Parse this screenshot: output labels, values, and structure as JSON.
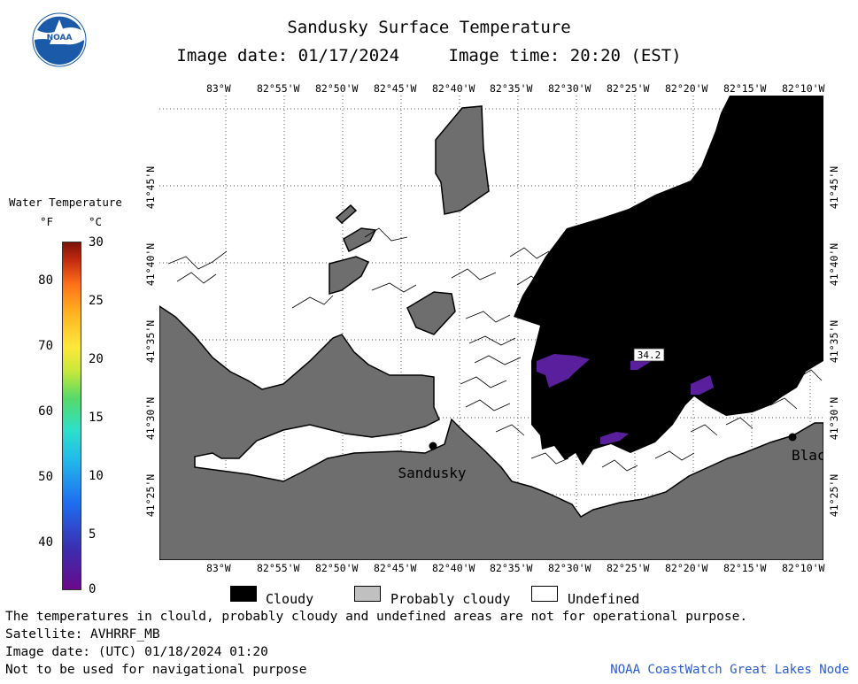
{
  "header": {
    "title": "Sandusky Surface Temperature",
    "image_date": "Image date: 01/17/2024",
    "image_time": "Image time: 20:20 (EST)"
  },
  "logo": {
    "text": "NOAA",
    "icon": "noaa-logo"
  },
  "legend": {
    "title": "Water Temperature",
    "unit_f": "°F",
    "unit_c": "°C",
    "f_ticks": [
      "80",
      "70",
      "60",
      "50",
      "40"
    ],
    "c_ticks": [
      "30",
      "25",
      "20",
      "15",
      "10",
      "5",
      "0"
    ],
    "colors": {
      "min": "#6a0a8a",
      "mid": "#56d96a",
      "max": "#7a1208"
    }
  },
  "map": {
    "top_lon_labels": [
      "83°W",
      "82°55'W",
      "82°50'W",
      "82°45'W",
      "82°40'W",
      "82°35'W",
      "82°30'W",
      "82°25'W",
      "82°20'W",
      "82°15'W",
      "82°10'W"
    ],
    "bottom_lon_labels": [
      "83°W",
      "82°55'W",
      "82°50'W",
      "82°45'W",
      "82°40'W",
      "82°35'W",
      "82°30'W",
      "82°25'W",
      "82°20'W",
      "82°15'W",
      "82°10'W"
    ],
    "lat_labels": [
      "41°45'N",
      "41°40'N",
      "41°35'N",
      "41°30'N",
      "41°25'N"
    ],
    "stations": [
      {
        "name": "Sandusky"
      },
      {
        "name": "Blac"
      }
    ],
    "temp_label": "34.2",
    "colors": {
      "land": "#6e6e6e",
      "cloud": "#000000",
      "water_cold": "#5a1f9c",
      "undefined": "#ffffff"
    }
  },
  "map_legend": [
    {
      "label": "Cloudy",
      "color": "#000000"
    },
    {
      "label": "Probably cloudy",
      "color": "#c0c0c0"
    },
    {
      "label": "Undefined",
      "color": "#ffffff"
    }
  ],
  "footer": {
    "line1": "The temperatures in clould, probably cloudy and undefined areas are not for operational purpose.",
    "line2": "Satellite: AVHRRF_MB",
    "line3": "Image date: (UTC) 01/18/2024  01:20",
    "line4": "Not to be used for navigational purpose",
    "credit": "NOAA CoastWatch Great Lakes Node"
  }
}
